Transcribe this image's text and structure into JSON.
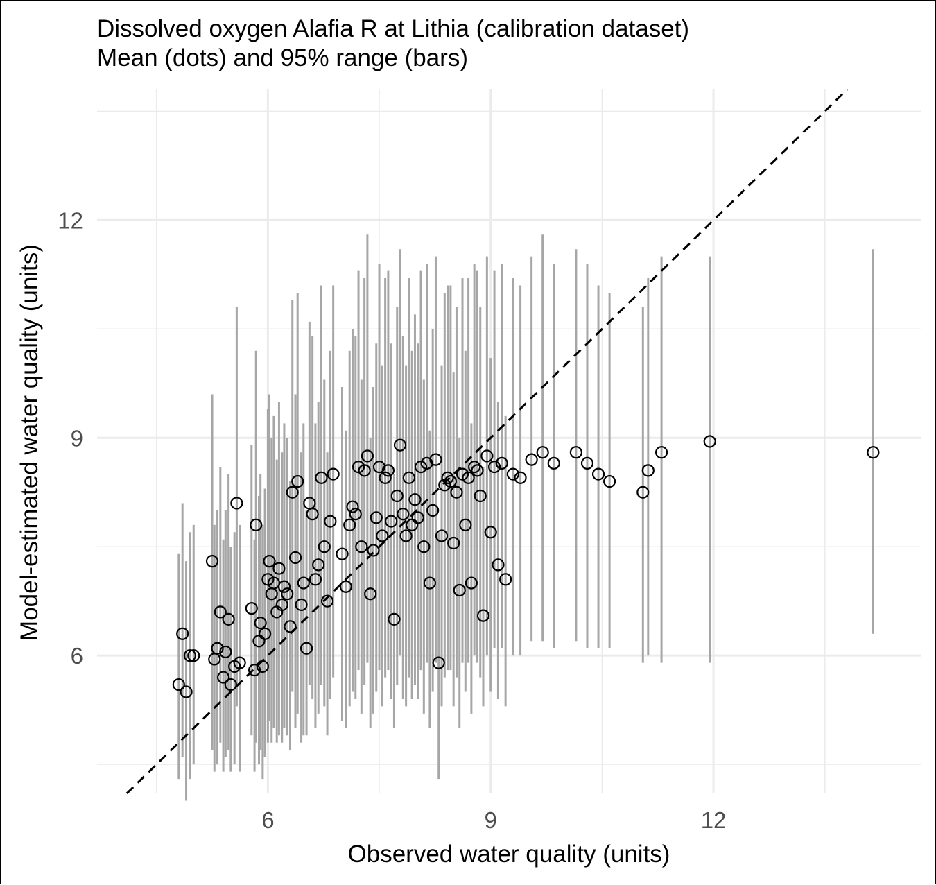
{
  "chart_data": {
    "type": "scatter",
    "title": "Dissolved oxygen Alafia R at Lithia (calibration dataset)",
    "subtitle": "Mean (dots) and 95% range (bars)",
    "xlabel": "Observed water quality (units)",
    "ylabel": "Model-estimated water quality (units)",
    "xlim": [
      3.7,
      14.8
    ],
    "ylim": [
      4.1,
      13.8
    ],
    "x_ticks": [
      6,
      9,
      12
    ],
    "y_ticks": [
      6,
      9,
      12
    ],
    "grid": true,
    "reference_line": "1:1 dashed",
    "colors": {
      "bars": "#a6a6a6",
      "points": "#000000",
      "grid": "#ebebeb",
      "reference": "#000000"
    },
    "series": [
      {
        "x": [
          4.8,
          4.85,
          4.9,
          4.95,
          5.0,
          5.25,
          5.28,
          5.32,
          5.36,
          5.4,
          5.43,
          5.47,
          5.5,
          5.55,
          5.58,
          5.62,
          5.78,
          5.82,
          5.84,
          5.88,
          5.9,
          5.93,
          5.96,
          6.0,
          6.02,
          6.05,
          6.08,
          6.12,
          6.15,
          6.19,
          6.22,
          6.26,
          6.3,
          6.33,
          6.37,
          6.4,
          6.45,
          6.48,
          6.52,
          6.56,
          6.6,
          6.64,
          6.68,
          6.72,
          6.76,
          6.8,
          6.84,
          6.88,
          7.0,
          7.05,
          7.1,
          7.14,
          7.18,
          7.22,
          7.26,
          7.3,
          7.34,
          7.38,
          7.42,
          7.46,
          7.5,
          7.54,
          7.58,
          7.62,
          7.66,
          7.7,
          7.74,
          7.78,
          7.82,
          7.86,
          7.9,
          7.94,
          7.98,
          8.02,
          8.06,
          8.1,
          8.14,
          8.18,
          8.22,
          8.26,
          8.3,
          8.34,
          8.38,
          8.42,
          8.46,
          8.5,
          8.54,
          8.58,
          8.62,
          8.66,
          8.7,
          8.74,
          8.78,
          8.82,
          8.86,
          8.9,
          8.95,
          9.0,
          9.05,
          9.1,
          9.15,
          9.2,
          9.3,
          9.4,
          9.55,
          9.7,
          9.85,
          10.15,
          10.3,
          10.45,
          10.6,
          11.05,
          11.12,
          11.3,
          11.95,
          14.15
        ],
        "mean": [
          5.6,
          6.3,
          5.5,
          6.0,
          6.0,
          7.3,
          5.95,
          6.1,
          6.6,
          5.7,
          6.05,
          6.5,
          5.6,
          5.85,
          8.1,
          5.9,
          6.65,
          5.8,
          7.8,
          6.2,
          6.45,
          5.85,
          6.3,
          7.05,
          7.3,
          6.85,
          7.0,
          6.6,
          7.2,
          6.7,
          6.95,
          6.85,
          6.4,
          8.25,
          7.35,
          8.4,
          6.7,
          7.0,
          6.1,
          8.1,
          7.95,
          7.05,
          7.25,
          8.45,
          7.5,
          6.75,
          7.85,
          8.5,
          7.4,
          6.95,
          7.8,
          8.05,
          7.95,
          8.6,
          7.5,
          8.55,
          8.75,
          6.85,
          7.45,
          7.9,
          8.6,
          7.65,
          8.45,
          8.55,
          7.85,
          6.5,
          8.2,
          8.9,
          7.95,
          7.65,
          8.45,
          7.8,
          8.15,
          7.9,
          8.6,
          7.5,
          8.65,
          7.0,
          8.0,
          8.7,
          5.9,
          7.65,
          8.35,
          8.45,
          8.4,
          7.55,
          8.25,
          6.9,
          8.5,
          7.8,
          8.45,
          7.0,
          8.6,
          8.55,
          8.2,
          6.55,
          8.75,
          7.7,
          8.6,
          7.25,
          8.65,
          7.05,
          8.5,
          8.45,
          8.7,
          8.8,
          8.65,
          8.8,
          8.65,
          8.5,
          8.4,
          8.25,
          8.55,
          8.8,
          8.95,
          8.8
        ],
        "lower": [
          4.3,
          4.6,
          4.0,
          4.3,
          4.5,
          4.7,
          4.4,
          4.5,
          4.8,
          4.4,
          4.6,
          4.7,
          4.4,
          4.5,
          5.3,
          4.4,
          4.9,
          4.4,
          4.8,
          4.5,
          4.7,
          4.3,
          4.6,
          4.8,
          5.1,
          4.8,
          5.0,
          4.8,
          4.9,
          4.8,
          5.0,
          4.9,
          4.7,
          5.5,
          5.0,
          5.2,
          4.8,
          4.9,
          4.9,
          5.6,
          5.4,
          5.0,
          5.2,
          5.6,
          5.3,
          4.9,
          5.4,
          5.7,
          5.1,
          5.0,
          5.3,
          5.5,
          5.4,
          5.8,
          5.2,
          5.6,
          5.9,
          5.0,
          5.2,
          5.5,
          5.8,
          5.3,
          5.7,
          5.8,
          5.4,
          5.0,
          5.6,
          6.0,
          5.4,
          5.3,
          5.7,
          5.4,
          5.6,
          5.4,
          5.8,
          5.2,
          5.9,
          5.0,
          5.5,
          5.9,
          4.3,
          5.3,
          5.7,
          5.8,
          5.8,
          5.3,
          5.7,
          5.0,
          5.9,
          5.5,
          5.9,
          5.2,
          6.0,
          5.9,
          5.7,
          5.3,
          6.0,
          5.5,
          6.1,
          5.4,
          6.1,
          5.3,
          6.0,
          6.0,
          6.2,
          6.2,
          6.1,
          6.2,
          6.1,
          6.1,
          6.1,
          5.9,
          6.0,
          5.9,
          5.9,
          6.3
        ],
        "upper": [
          7.4,
          8.1,
          7.3,
          7.7,
          7.8,
          9.6,
          7.8,
          8.0,
          8.6,
          7.6,
          8.0,
          8.5,
          7.5,
          7.7,
          10.8,
          7.8,
          8.9,
          7.6,
          10.2,
          8.2,
          8.5,
          7.8,
          8.3,
          9.4,
          9.6,
          9.0,
          9.3,
          8.7,
          9.5,
          8.8,
          9.2,
          9.0,
          8.4,
          10.9,
          9.6,
          11.0,
          8.8,
          9.2,
          8.0,
          10.6,
          10.4,
          9.2,
          9.5,
          11.1,
          9.8,
          8.8,
          10.2,
          11.1,
          9.7,
          9.1,
          10.2,
          10.5,
          10.4,
          11.3,
          9.8,
          11.2,
          11.8,
          9.0,
          9.7,
          10.3,
          11.4,
          10.0,
          11.2,
          11.3,
          10.3,
          8.5,
          10.8,
          11.6,
          10.4,
          10.0,
          11.2,
          10.2,
          10.7,
          10.3,
          11.3,
          9.8,
          11.4,
          9.1,
          10.5,
          11.5,
          7.7,
          10.0,
          11.0,
          11.1,
          11.1,
          9.9,
          10.8,
          9.0,
          11.2,
          10.2,
          11.2,
          9.2,
          11.4,
          11.3,
          10.8,
          8.6,
          11.5,
          10.1,
          11.3,
          9.5,
          11.4,
          9.3,
          11.2,
          11.1,
          11.5,
          11.8,
          11.4,
          11.6,
          11.4,
          11.1,
          11.0,
          10.8,
          11.2,
          11.5,
          11.5,
          11.6
        ]
      }
    ]
  }
}
